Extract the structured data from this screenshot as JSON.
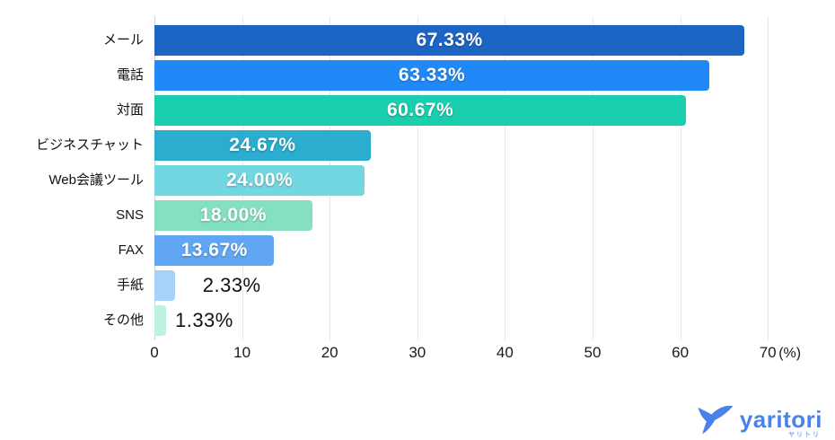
{
  "chart_data": {
    "type": "bar",
    "orientation": "horizontal",
    "title": "",
    "categories": [
      "メール",
      "電話",
      "対面",
      "ビジネスチャット",
      "Web会議ツール",
      "SNS",
      "FAX",
      "手紙",
      "その他"
    ],
    "values": [
      67.33,
      63.33,
      60.67,
      24.67,
      24.0,
      18.0,
      13.67,
      2.33,
      1.33
    ],
    "value_labels": [
      "67.33%",
      "63.33%",
      "60.67%",
      "24.67%",
      "24.00%",
      "18.00%",
      "13.67%",
      "2.33%",
      "1.33%"
    ],
    "label_positions": [
      "inside",
      "inside",
      "inside",
      "inside",
      "inside",
      "inside",
      "inside",
      "outside",
      "outside"
    ],
    "bar_colors": [
      "#1c65c4",
      "#2089f7",
      "#1bceae",
      "#2aadce",
      "#72d7e0",
      "#85dfc2",
      "#60a6f2",
      "#a8d3f8",
      "#bdf3de"
    ],
    "xlim": [
      0,
      70
    ],
    "x_ticks": [
      0,
      10,
      20,
      30,
      40,
      50,
      60,
      70
    ],
    "x_unit_label": "(%)",
    "grid": true,
    "legend": false,
    "value_label_color_inside": "#ffffff",
    "value_label_color_outside": "#111111"
  },
  "branding": {
    "logo_text": "yaritori",
    "logo_subtext": "ヤリトリ",
    "logo_color": "#4a82ec"
  }
}
